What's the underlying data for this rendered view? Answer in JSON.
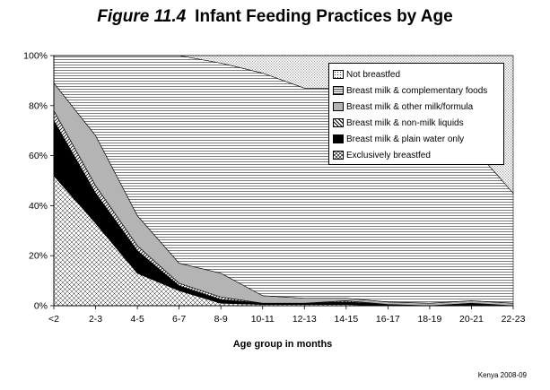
{
  "title": {
    "figure": "Figure 11.4",
    "text": "Infant Feeding Practices by Age"
  },
  "source": "Kenya 2008-09",
  "chart_data": {
    "type": "area",
    "stacked": true,
    "categories": [
      "<2",
      "2-3",
      "4-5",
      "6-7",
      "8-9",
      "10-11",
      "12-13",
      "14-15",
      "16-17",
      "18-19",
      "20-21",
      "22-23"
    ],
    "xlabel": "Age group in months",
    "ylabel": "",
    "ylim": [
      0,
      100
    ],
    "yticks": [
      "0%",
      "20%",
      "40%",
      "60%",
      "80%",
      "100%"
    ],
    "grid": true,
    "legend_position": "top-right",
    "series": [
      {
        "name": "Exclusively breastfed",
        "pattern": "crosshatch",
        "values": [
          52,
          33,
          13,
          6,
          1,
          0.5,
          0.5,
          0.5,
          0,
          0,
          0,
          0
        ]
      },
      {
        "name": "Breast milk & plain water only",
        "pattern": "black",
        "values": [
          22,
          12,
          9,
          2,
          1.5,
          0.5,
          0.5,
          1,
          0.5,
          0,
          1,
          0
        ]
      },
      {
        "name": "Breast milk & non-milk liquids",
        "pattern": "diagonal",
        "values": [
          4,
          3,
          2,
          1,
          1,
          0,
          0,
          0.5,
          0,
          0,
          0,
          0
        ]
      },
      {
        "name": "Breast milk & other milk/formula",
        "pattern": "gray",
        "values": [
          11,
          20,
          12,
          8,
          9.5,
          3,
          2,
          1,
          1,
          1,
          1,
          1
        ]
      },
      {
        "name": "Breast milk & complementary foods",
        "pattern": "horizontal",
        "values": [
          11,
          32,
          64,
          83,
          84,
          89,
          84,
          84,
          79,
          73,
          62,
          44
        ]
      },
      {
        "name": "Not breastfed",
        "pattern": "dots",
        "values": [
          0,
          0,
          0,
          0,
          3,
          7,
          13,
          13,
          19.5,
          26,
          36,
          55
        ]
      }
    ]
  }
}
